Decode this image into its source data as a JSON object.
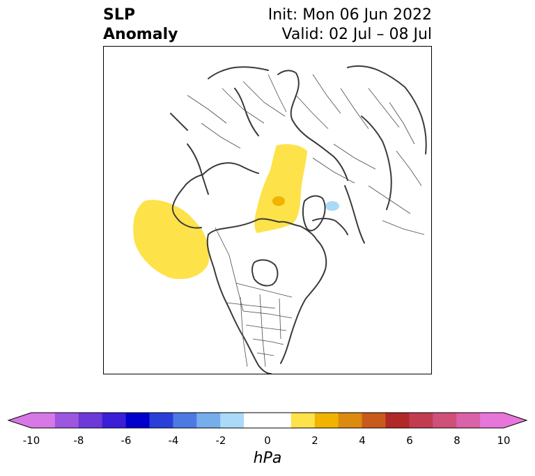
{
  "title": {
    "left_line1": "SLP",
    "left_line2": "Anomaly",
    "right_line1": "Init: Mon 06 Jun 2022",
    "right_line2": "Valid: 02 Jul – 08 Jul"
  },
  "map": {
    "projection": "north-polar-stereographic",
    "features": [
      "coastlines",
      "country-borders",
      "us-state-borders",
      "ca-province-borders"
    ],
    "anomalies": [
      {
        "region": "north-pacific-gulf-of-alaska",
        "level": "1 to 2 hPa",
        "color": "#fde24a"
      },
      {
        "region": "arctic-ocean-kara-barents",
        "level": "1 to 2 hPa",
        "color": "#fde24a"
      },
      {
        "region": "barents-core",
        "level": "2 to 3 hPa",
        "color": "#f0b400"
      },
      {
        "region": "east-siberian-coast",
        "level": "-2 to -1 hPa",
        "color": "#a9dbf8"
      }
    ]
  },
  "colorbar": {
    "unit": "hPa",
    "colors": [
      "#d678e6",
      "#9e55e0",
      "#6b3ad8",
      "#3b1ed8",
      "#0000cc",
      "#2a3ed8",
      "#4d79e4",
      "#76aeec",
      "#abd9f8",
      "#ffffff",
      "#ffffff",
      "#fde24a",
      "#f0b400",
      "#dc8a10",
      "#c85a1c",
      "#b02828",
      "#c23c50",
      "#d0507a",
      "#da62a8",
      "#e676da"
    ],
    "under_color": "#d678e6",
    "over_color": "#e676da",
    "ticks": [
      "-10",
      "-8",
      "-6",
      "-4",
      "-2",
      "0",
      "2",
      "4",
      "6",
      "8",
      "10"
    ]
  }
}
